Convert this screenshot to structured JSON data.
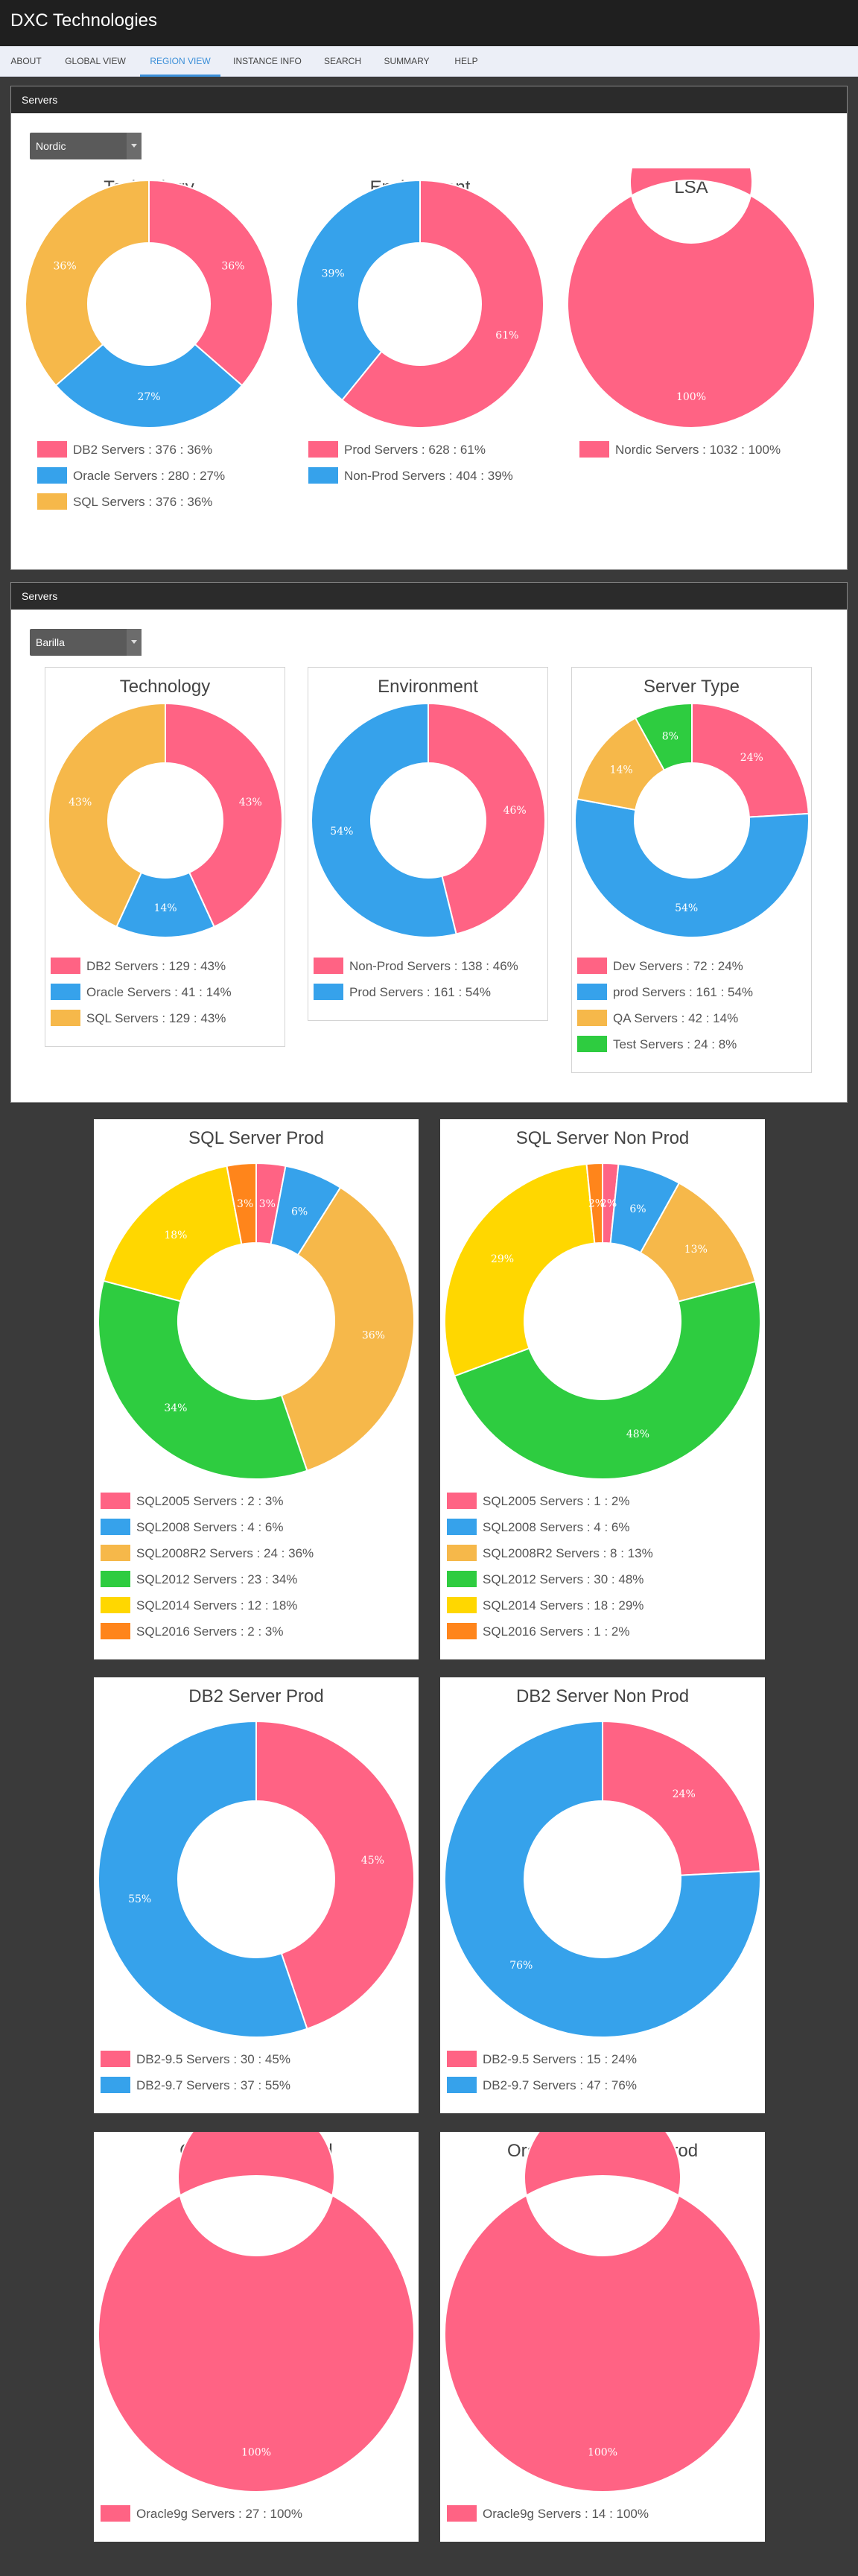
{
  "app": {
    "title": "DXC Technologies"
  },
  "nav": [
    {
      "label": "ABOUT",
      "active": false
    },
    {
      "label": "GLOBAL VIEW",
      "active": false
    },
    {
      "label": "REGION VIEW",
      "active": true
    },
    {
      "label": "INSTANCE INFO",
      "active": false
    },
    {
      "label": "SEARCH",
      "active": false
    },
    {
      "label": "SUMMARY",
      "active": false
    },
    {
      "label": "HELP",
      "active": false
    }
  ],
  "colors": {
    "pink": "#ff6384",
    "blue": "#36a2eb",
    "yellow": "#ffce56",
    "orange": "#f6b84a",
    "green": "#2ecc40",
    "gold": "#ffd700",
    "deeporange": "#ff851b"
  },
  "panels": [
    {
      "title": "Servers",
      "select": "Nordic"
    },
    {
      "title": "Servers",
      "select": "Barilla"
    }
  ],
  "chart_data": [
    {
      "id": "nordic-technology",
      "type": "pie",
      "title": "Technology",
      "labels": [
        "DB2 Servers",
        "Oracle Servers",
        "SQL Servers"
      ],
      "values": [
        376,
        280,
        376
      ],
      "percents": [
        36,
        27,
        36
      ],
      "colors": [
        "#ff6384",
        "#36a2eb",
        "#f6b84a"
      ],
      "legend": [
        "DB2 Servers : 376 : 36%",
        "Oracle Servers : 280 : 27%",
        "SQL Servers : 376 : 36%"
      ]
    },
    {
      "id": "nordic-environment",
      "type": "pie",
      "title": "Environment",
      "labels": [
        "Prod Servers",
        "Non-Prod Servers"
      ],
      "values": [
        628,
        404
      ],
      "percents": [
        61,
        39
      ],
      "colors": [
        "#ff6384",
        "#36a2eb"
      ],
      "legend": [
        "Prod Servers : 628 : 61%",
        "Non-Prod Servers : 404 : 39%"
      ]
    },
    {
      "id": "nordic-lsa",
      "type": "pie",
      "title": "LSA",
      "labels": [
        "Nordic Servers"
      ],
      "values": [
        1032
      ],
      "percents": [
        100
      ],
      "colors": [
        "#ff6384"
      ],
      "legend": [
        "Nordic Servers : 1032 : 100%"
      ]
    },
    {
      "id": "barilla-technology",
      "type": "pie",
      "title": "Technology",
      "labels": [
        "DB2 Servers",
        "Oracle Servers",
        "SQL Servers"
      ],
      "values": [
        129,
        41,
        129
      ],
      "percents": [
        43,
        14,
        43
      ],
      "colors": [
        "#ff6384",
        "#36a2eb",
        "#f6b84a"
      ],
      "legend": [
        "DB2 Servers : 129 : 43%",
        "Oracle Servers : 41 : 14%",
        "SQL Servers : 129 : 43%"
      ]
    },
    {
      "id": "barilla-environment",
      "type": "pie",
      "title": "Environment",
      "labels": [
        "Non-Prod Servers",
        "Prod Servers"
      ],
      "values": [
        138,
        161
      ],
      "percents": [
        46,
        54
      ],
      "colors": [
        "#ff6384",
        "#36a2eb"
      ],
      "legend": [
        "Non-Prod Servers : 138 : 46%",
        "Prod Servers : 161 : 54%"
      ]
    },
    {
      "id": "barilla-servertype",
      "type": "pie",
      "title": "Server Type",
      "labels": [
        "Dev Servers",
        "prod Servers",
        "QA Servers",
        "Test Servers"
      ],
      "values": [
        72,
        161,
        42,
        24
      ],
      "percents": [
        24,
        54,
        14,
        8
      ],
      "colors": [
        "#ff6384",
        "#36a2eb",
        "#f6b84a",
        "#2ecc40"
      ],
      "legend": [
        "Dev Servers : 72 : 24%",
        "prod Servers : 161 : 54%",
        "QA Servers : 42 : 14%",
        "Test Servers : 24 : 8%"
      ]
    },
    {
      "id": "sql-prod",
      "type": "pie",
      "title": "SQL Server Prod",
      "labels": [
        "SQL2005 Servers",
        "SQL2008 Servers",
        "SQL2008R2 Servers",
        "SQL2012 Servers",
        "SQL2014 Servers",
        "SQL2016 Servers"
      ],
      "values": [
        2,
        4,
        24,
        23,
        12,
        2
      ],
      "percents": [
        3,
        6,
        36,
        34,
        18,
        3
      ],
      "colors": [
        "#ff6384",
        "#36a2eb",
        "#f6b84a",
        "#2ecc40",
        "#ffd700",
        "#ff851b"
      ],
      "legend": [
        "SQL2005 Servers : 2 : 3%",
        "SQL2008 Servers : 4 : 6%",
        "SQL2008R2 Servers : 24 : 36%",
        "SQL2012 Servers : 23 : 34%",
        "SQL2014 Servers : 12 : 18%",
        "SQL2016 Servers : 2 : 3%"
      ]
    },
    {
      "id": "sql-nonprod",
      "type": "pie",
      "title": "SQL Server Non Prod",
      "labels": [
        "SQL2005 Servers",
        "SQL2008 Servers",
        "SQL2008R2 Servers",
        "SQL2012 Servers",
        "SQL2014 Servers",
        "SQL2016 Servers"
      ],
      "values": [
        1,
        4,
        8,
        30,
        18,
        1
      ],
      "percents": [
        2,
        6,
        13,
        48,
        29,
        2
      ],
      "colors": [
        "#ff6384",
        "#36a2eb",
        "#f6b84a",
        "#2ecc40",
        "#ffd700",
        "#ff851b"
      ],
      "legend": [
        "SQL2005 Servers : 1 : 2%",
        "SQL2008 Servers : 4 : 6%",
        "SQL2008R2 Servers : 8 : 13%",
        "SQL2012 Servers : 30 : 48%",
        "SQL2014 Servers : 18 : 29%",
        "SQL2016 Servers : 1 : 2%"
      ]
    },
    {
      "id": "db2-prod",
      "type": "pie",
      "title": "DB2 Server Prod",
      "labels": [
        "DB2-9.5 Servers",
        "DB2-9.7 Servers"
      ],
      "values": [
        30,
        37
      ],
      "percents": [
        45,
        55
      ],
      "colors": [
        "#ff6384",
        "#36a2eb"
      ],
      "legend": [
        "DB2-9.5 Servers : 30 : 45%",
        "DB2-9.7 Servers : 37 : 55%"
      ]
    },
    {
      "id": "db2-nonprod",
      "type": "pie",
      "title": "DB2 Server Non Prod",
      "labels": [
        "DB2-9.5 Servers",
        "DB2-9.7 Servers"
      ],
      "values": [
        15,
        47
      ],
      "percents": [
        24,
        76
      ],
      "colors": [
        "#ff6384",
        "#36a2eb"
      ],
      "legend": [
        "DB2-9.5 Servers : 15 : 24%",
        "DB2-9.7 Servers : 47 : 76%"
      ]
    },
    {
      "id": "oracle-prod",
      "type": "pie",
      "title": "Oracle Server Prod",
      "labels": [
        "Oracle9g Servers"
      ],
      "values": [
        27
      ],
      "percents": [
        100
      ],
      "colors": [
        "#ff6384"
      ],
      "legend": [
        "Oracle9g Servers : 27 : 100%"
      ]
    },
    {
      "id": "oracle-nonprod",
      "type": "pie",
      "title": "Oracle Server Non Prod",
      "labels": [
        "Oracle9g Servers"
      ],
      "values": [
        14
      ],
      "percents": [
        100
      ],
      "colors": [
        "#ff6384"
      ],
      "legend": [
        "Oracle9g Servers : 14 : 100%"
      ]
    }
  ]
}
